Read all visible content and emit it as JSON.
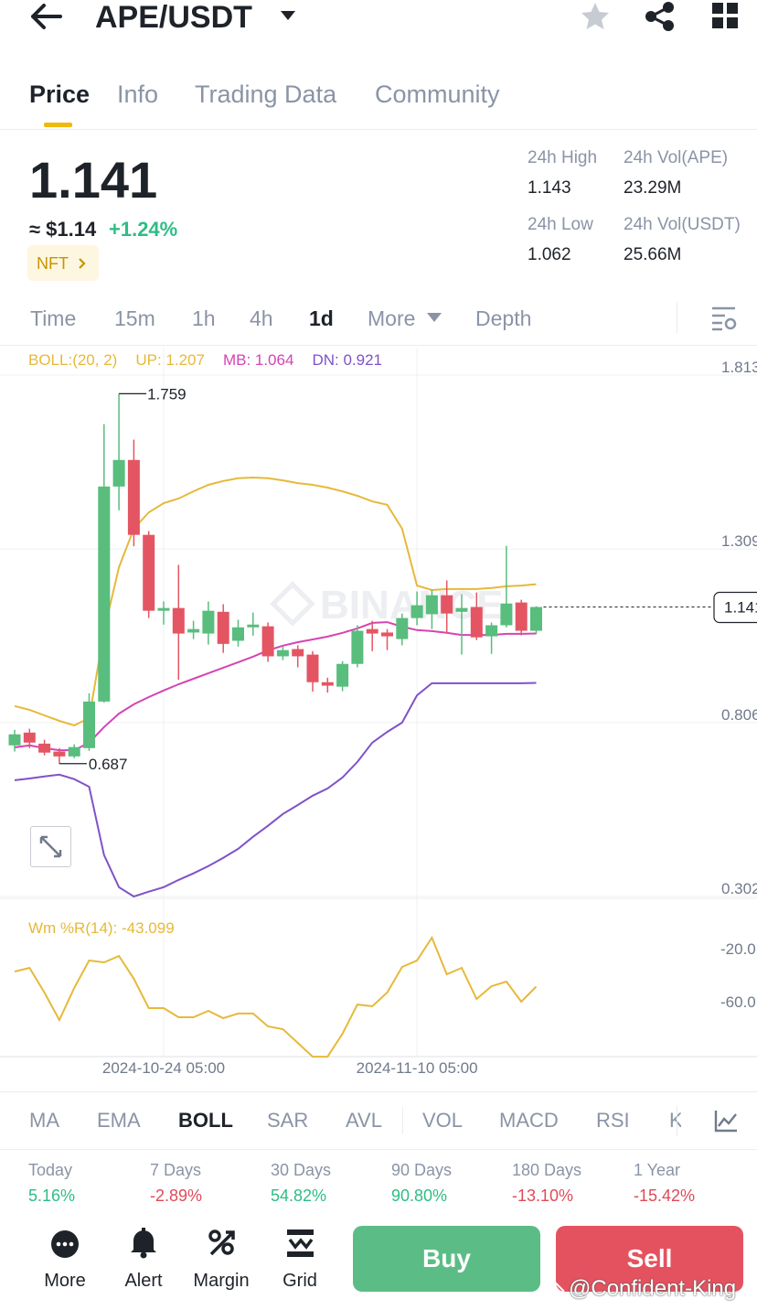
{
  "header": {
    "title": "APE/USDT"
  },
  "tabs": [
    "Price",
    "Info",
    "Trading Data",
    "Community"
  ],
  "price": {
    "last": "1.141",
    "fiat": "≈ $1.14",
    "change": "+1.24%",
    "tag": "NFT"
  },
  "stats": [
    {
      "label": "24h High",
      "value": "1.143"
    },
    {
      "label": "24h Vol(APE)",
      "value": "23.29M"
    },
    {
      "label": "24h Low",
      "value": "1.062"
    },
    {
      "label": "24h Vol(USDT)",
      "value": "25.66M"
    }
  ],
  "intervals": [
    "Time",
    "15m",
    "1h",
    "4h",
    "1d",
    "More",
    "Depth"
  ],
  "chart_data": [
    {
      "type": "candlestick",
      "legend": [
        "BOLL:(20, 2)",
        "UP: 1.207",
        "MB: 1.064",
        "DN: 0.921"
      ],
      "ohlc": [
        [
          0.74,
          0.785,
          0.722,
          0.772
        ],
        [
          0.777,
          0.788,
          0.732,
          0.748
        ],
        [
          0.745,
          0.756,
          0.711,
          0.719
        ],
        [
          0.722,
          0.732,
          0.687,
          0.708
        ],
        [
          0.708,
          0.743,
          0.703,
          0.735
        ],
        [
          0.732,
          0.891,
          0.724,
          0.867
        ],
        [
          0.867,
          1.671,
          0.864,
          1.49
        ],
        [
          1.49,
          1.759,
          1.421,
          1.567
        ],
        [
          1.567,
          1.626,
          1.317,
          1.35
        ],
        [
          1.35,
          1.361,
          1.109,
          1.13
        ],
        [
          1.13,
          1.157,
          1.09,
          1.138
        ],
        [
          1.138,
          1.263,
          0.93,
          1.064
        ],
        [
          1.067,
          1.101,
          1.048,
          1.077
        ],
        [
          1.064,
          1.157,
          1.032,
          1.13
        ],
        [
          1.127,
          1.149,
          1.008,
          1.034
        ],
        [
          1.043,
          1.104,
          1.026,
          1.082
        ],
        [
          1.082,
          1.125,
          1.058,
          1.09
        ],
        [
          1.085,
          1.096,
          0.982,
          0.998
        ],
        [
          0.998,
          1.026,
          0.987,
          1.016
        ],
        [
          1.019,
          1.03,
          0.966,
          0.998
        ],
        [
          1.003,
          1.013,
          0.896,
          0.923
        ],
        [
          0.923,
          0.936,
          0.893,
          0.913
        ],
        [
          0.91,
          0.984,
          0.897,
          0.976
        ],
        [
          0.976,
          1.088,
          0.966,
          1.072
        ],
        [
          1.077,
          1.101,
          1.013,
          1.064
        ],
        [
          1.067,
          1.077,
          1.016,
          1.056
        ],
        [
          1.048,
          1.122,
          1.03,
          1.109
        ],
        [
          1.109,
          1.186,
          1.088,
          1.146
        ],
        [
          1.12,
          1.191,
          1.077,
          1.175
        ],
        [
          1.175,
          1.218,
          1.064,
          1.122
        ],
        [
          1.127,
          1.178,
          1.003,
          1.138
        ],
        [
          1.141,
          1.183,
          1.045,
          1.053
        ],
        [
          1.056,
          1.096,
          1.005,
          1.088
        ],
        [
          1.088,
          1.318,
          1.082,
          1.151
        ],
        [
          1.154,
          1.162,
          1.059,
          1.072
        ],
        [
          1.072,
          1.143,
          1.062,
          1.141
        ]
      ],
      "series": [
        {
          "color": "#e6b93a",
          "values": [
            0.854,
            0.843,
            0.827,
            0.811,
            0.798,
            0.819,
            1.071,
            1.256,
            1.368,
            1.415,
            1.442,
            1.455,
            1.476,
            1.495,
            1.506,
            1.514,
            1.516,
            1.514,
            1.508,
            1.5,
            1.495,
            1.487,
            1.476,
            1.463,
            1.447,
            1.437,
            1.368,
            1.203,
            1.19,
            1.193,
            1.193,
            1.193,
            1.196,
            1.201,
            1.203,
            1.207
          ]
        },
        {
          "color": "#d444b4",
          "values": [
            0.734,
            0.74,
            0.732,
            0.726,
            0.726,
            0.748,
            0.793,
            0.832,
            0.859,
            0.88,
            0.899,
            0.917,
            0.933,
            0.949,
            0.965,
            0.981,
            0.997,
            1.015,
            1.029,
            1.039,
            1.047,
            1.055,
            1.066,
            1.079,
            1.095,
            1.097,
            1.084,
            1.074,
            1.071,
            1.066,
            1.06,
            1.06,
            1.06,
            1.063,
            1.063,
            1.064
          ]
        },
        {
          "color": "#7f52c8",
          "values": [
            0.639,
            0.644,
            0.65,
            0.655,
            0.642,
            0.62,
            0.422,
            0.329,
            0.302,
            0.316,
            0.329,
            0.35,
            0.369,
            0.39,
            0.414,
            0.44,
            0.475,
            0.507,
            0.541,
            0.567,
            0.594,
            0.615,
            0.647,
            0.692,
            0.748,
            0.779,
            0.806,
            0.885,
            0.92,
            0.92,
            0.92,
            0.92,
            0.92,
            0.92,
            0.92,
            0.921
          ]
        }
      ],
      "up_color": "#58bd7d",
      "down_color": "#e45563",
      "ylim": [
        0.302,
        1.813
      ],
      "yticks": [
        1.813,
        1.309,
        0.806,
        0.302
      ]
    },
    {
      "type": "line",
      "title": "Wm %R(14): -43.099",
      "categories": [
        null,
        null,
        null,
        null,
        null,
        null,
        null,
        null,
        null,
        null,
        "2024-10-24 05:00",
        null,
        null,
        null,
        null,
        null,
        null,
        null,
        null,
        null,
        null,
        null,
        null,
        null,
        null,
        null,
        null,
        "2024-11-10 05:00",
        null,
        null,
        null,
        null,
        null,
        null,
        null,
        null
      ],
      "values": [
        -31.7,
        -29.0,
        -47.6,
        -68.3,
        -44.1,
        -23.4,
        -24.8,
        -20.0,
        -37.2,
        -59.3,
        -59.3,
        -66.2,
        -66.2,
        -61.4,
        -66.9,
        -63.4,
        -63.4,
        -73.1,
        -75.2,
        -85.5,
        -95.9,
        -95.9,
        -78.6,
        -56.6,
        -57.9,
        -47.6,
        -28.3,
        -23.4,
        -6.2,
        -33.8,
        -29.0,
        -52.4,
        -42.8,
        -39.3,
        -54.5,
        -43.099
      ],
      "color": "#e6b93a",
      "ylim": [
        -100,
        0
      ],
      "yticks": [
        {
          "value": -20,
          "label": "-20.0"
        },
        {
          "value": -60,
          "label": "-60.0"
        }
      ]
    }
  ],
  "indicators": [
    "MA",
    "EMA",
    "BOLL",
    "SAR",
    "AVL",
    "VOL",
    "MACD",
    "RSI",
    "K"
  ],
  "performance": [
    {
      "label": "Today",
      "value": "5.16%"
    },
    {
      "label": "7 Days",
      "value": "-2.89%"
    },
    {
      "label": "30 Days",
      "value": "54.82%"
    },
    {
      "label": "90 Days",
      "value": "90.80%"
    },
    {
      "label": "180 Days",
      "value": "-13.10%"
    },
    {
      "label": "1 Year",
      "value": "-15.42%"
    }
  ],
  "nav": [
    "More",
    "Alert",
    "Margin",
    "Grid"
  ],
  "buttons": [
    "Buy",
    "Sell"
  ],
  "watermarks": [
    "BINANCE",
    "@Confident-King"
  ]
}
